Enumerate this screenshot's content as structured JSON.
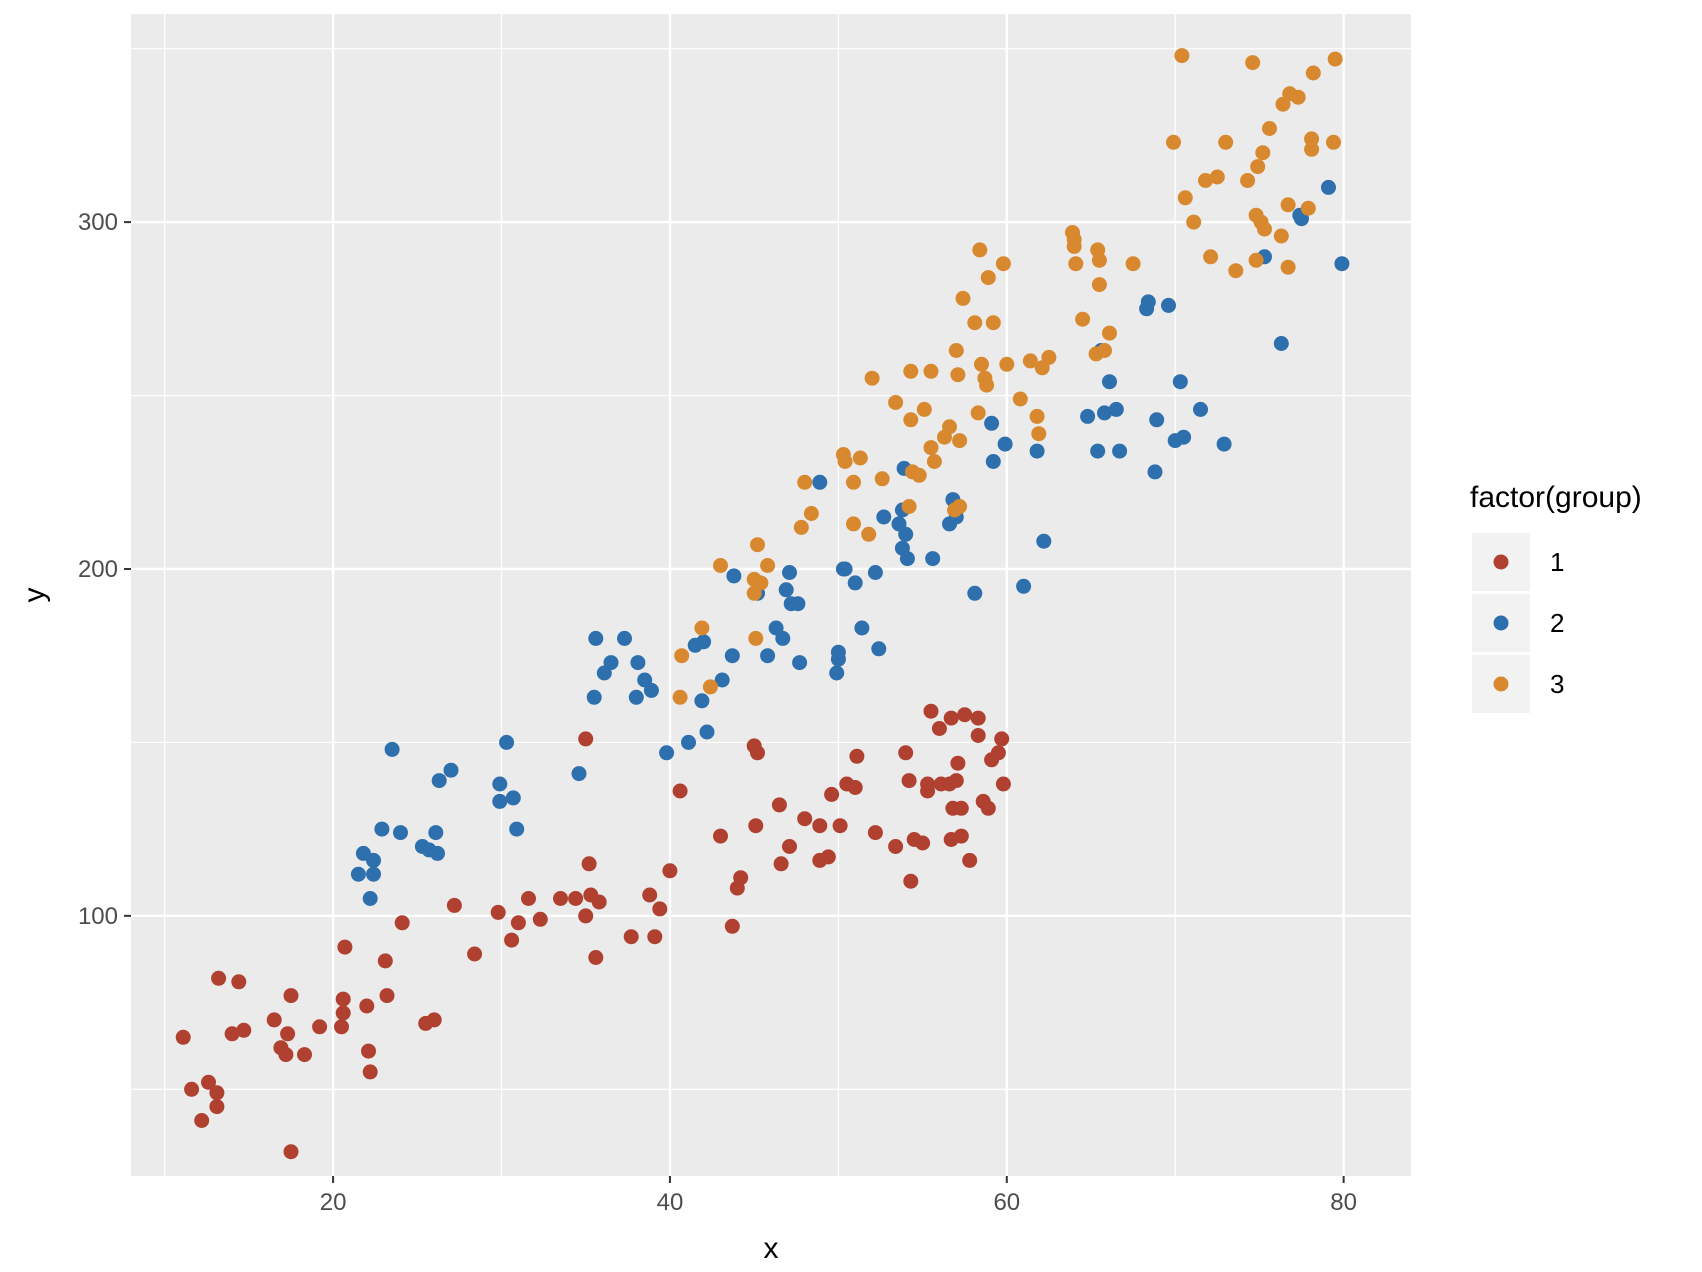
{
  "chart_data": {
    "type": "scatter",
    "xlabel": "x",
    "ylabel": "y",
    "xlim": [
      8,
      84
    ],
    "ylim": [
      25,
      360
    ],
    "x_ticks": [
      20,
      40,
      60,
      80
    ],
    "x_tick_labels": [
      "20",
      "40",
      "60",
      "80"
    ],
    "y_ticks": [
      100,
      200,
      300
    ],
    "y_tick_labels": [
      "100",
      "200",
      "300"
    ],
    "grid": true,
    "panel_background": "#ebebeb",
    "legend": {
      "title": "factor(group)",
      "placement": "right",
      "entries": [
        "1",
        "2",
        "3"
      ]
    },
    "series": [
      {
        "name": "1",
        "color": "#b0402f",
        "points": [
          [
            11.1,
            65
          ],
          [
            11.6,
            50
          ],
          [
            12.2,
            41
          ],
          [
            12.6,
            52
          ],
          [
            13.1,
            45
          ],
          [
            13.1,
            49
          ],
          [
            13.2,
            82
          ],
          [
            14,
            66
          ],
          [
            14.4,
            81
          ],
          [
            14.7,
            67
          ],
          [
            16.5,
            70
          ],
          [
            16.9,
            62
          ],
          [
            17.2,
            60
          ],
          [
            17.3,
            66
          ],
          [
            17.5,
            77
          ],
          [
            17.5,
            32
          ],
          [
            18.3,
            60
          ],
          [
            19.2,
            68
          ],
          [
            20.5,
            68
          ],
          [
            20.6,
            72
          ],
          [
            20.6,
            76
          ],
          [
            20.7,
            91
          ],
          [
            22,
            74
          ],
          [
            22.1,
            61
          ],
          [
            22.2,
            55
          ],
          [
            23.1,
            87
          ],
          [
            23.2,
            77
          ],
          [
            24.1,
            98
          ],
          [
            25.5,
            69
          ],
          [
            26,
            70
          ],
          [
            27.2,
            103
          ],
          [
            28.4,
            89
          ],
          [
            29.8,
            101
          ],
          [
            30.6,
            93
          ],
          [
            31,
            98
          ],
          [
            31.6,
            105
          ],
          [
            32.3,
            99
          ],
          [
            33.5,
            105
          ],
          [
            34.4,
            105
          ],
          [
            35,
            151
          ],
          [
            35,
            100
          ],
          [
            35.2,
            115
          ],
          [
            35.3,
            106
          ],
          [
            35.6,
            88
          ],
          [
            35.8,
            104
          ],
          [
            37.7,
            94
          ],
          [
            38.8,
            106
          ],
          [
            39.1,
            94
          ],
          [
            39.4,
            102
          ],
          [
            40,
            113
          ],
          [
            40.6,
            136
          ],
          [
            43,
            123
          ],
          [
            43.7,
            97
          ],
          [
            44,
            108
          ],
          [
            44.2,
            111
          ],
          [
            45,
            149
          ],
          [
            45.1,
            126
          ],
          [
            45.2,
            147
          ],
          [
            46.5,
            132
          ],
          [
            46.6,
            115
          ],
          [
            47.1,
            120
          ],
          [
            48,
            128
          ],
          [
            48.9,
            116
          ],
          [
            48.9,
            126
          ],
          [
            49.4,
            117
          ],
          [
            49.6,
            135
          ],
          [
            50.1,
            126
          ],
          [
            50.5,
            138
          ],
          [
            51,
            137
          ],
          [
            51.1,
            146
          ],
          [
            52.2,
            124
          ],
          [
            53.4,
            120
          ],
          [
            54,
            147
          ],
          [
            54.2,
            139
          ],
          [
            54.3,
            110
          ],
          [
            54.5,
            122
          ],
          [
            55,
            121
          ],
          [
            55.3,
            136
          ],
          [
            55.3,
            138
          ],
          [
            55.5,
            159
          ],
          [
            56,
            154
          ],
          [
            56.1,
            138
          ],
          [
            56.6,
            138
          ],
          [
            56.7,
            157
          ],
          [
            56.7,
            122
          ],
          [
            56.8,
            131
          ],
          [
            57,
            139
          ],
          [
            57.1,
            144
          ],
          [
            57.3,
            123
          ],
          [
            57.3,
            131
          ],
          [
            57.5,
            158
          ],
          [
            57.8,
            116
          ],
          [
            58.3,
            157
          ],
          [
            58.3,
            152
          ],
          [
            58.6,
            133
          ],
          [
            58.9,
            131
          ],
          [
            59.1,
            145
          ],
          [
            59.5,
            147
          ],
          [
            59.7,
            151
          ],
          [
            59.8,
            138
          ]
        ]
      },
      {
        "name": "2",
        "color": "#2e6fae",
        "points": [
          [
            21.5,
            112
          ],
          [
            21.8,
            118
          ],
          [
            22.2,
            105
          ],
          [
            22.4,
            112
          ],
          [
            22.4,
            116
          ],
          [
            22.9,
            125
          ],
          [
            23.5,
            148
          ],
          [
            24,
            124
          ],
          [
            25.3,
            120
          ],
          [
            25.7,
            119
          ],
          [
            26.1,
            124
          ],
          [
            26.2,
            118
          ],
          [
            26.3,
            139
          ],
          [
            27,
            142
          ],
          [
            29.9,
            138
          ],
          [
            29.9,
            133
          ],
          [
            30.3,
            150
          ],
          [
            30.7,
            134
          ],
          [
            30.9,
            125
          ],
          [
            34.6,
            141
          ],
          [
            35.5,
            163
          ],
          [
            35.6,
            180
          ],
          [
            36.1,
            170
          ],
          [
            36.5,
            173
          ],
          [
            37.3,
            180
          ],
          [
            38,
            163
          ],
          [
            38.1,
            173
          ],
          [
            38.5,
            168
          ],
          [
            38.9,
            165
          ],
          [
            39.8,
            147
          ],
          [
            41.1,
            150
          ],
          [
            41.5,
            178
          ],
          [
            41.9,
            162
          ],
          [
            42.2,
            153
          ],
          [
            42,
            179
          ],
          [
            43.1,
            168
          ],
          [
            43.7,
            175
          ],
          [
            43.8,
            198
          ],
          [
            45.2,
            193
          ],
          [
            45.8,
            175
          ],
          [
            46.3,
            183
          ],
          [
            46.7,
            180
          ],
          [
            46.9,
            194
          ],
          [
            47.1,
            199
          ],
          [
            47.2,
            190
          ],
          [
            47.6,
            190
          ],
          [
            47.7,
            173
          ],
          [
            48.9,
            225
          ],
          [
            49.9,
            170
          ],
          [
            50,
            174
          ],
          [
            50,
            176
          ],
          [
            50.3,
            200
          ],
          [
            50.4,
            200
          ],
          [
            51,
            196
          ],
          [
            51.4,
            183
          ],
          [
            52.2,
            199
          ],
          [
            52.4,
            177
          ],
          [
            52.7,
            215
          ],
          [
            53.6,
            213
          ],
          [
            53.8,
            217
          ],
          [
            53.8,
            206
          ],
          [
            53.9,
            229
          ],
          [
            54,
            210
          ],
          [
            54.1,
            203
          ],
          [
            55.6,
            203
          ],
          [
            56.6,
            213
          ],
          [
            56.8,
            220
          ],
          [
            57,
            215
          ],
          [
            58.1,
            193
          ],
          [
            59.1,
            242
          ],
          [
            59.2,
            231
          ],
          [
            59.9,
            236
          ],
          [
            61,
            195
          ],
          [
            61.8,
            234
          ],
          [
            62.2,
            208
          ],
          [
            64.8,
            244
          ],
          [
            65.4,
            234
          ],
          [
            65.6,
            263
          ],
          [
            65.8,
            245
          ],
          [
            66.1,
            254
          ],
          [
            66.5,
            246
          ],
          [
            66.7,
            234
          ],
          [
            68.3,
            275
          ],
          [
            68.4,
            277
          ],
          [
            68.8,
            228
          ],
          [
            68.9,
            243
          ],
          [
            69.6,
            276
          ],
          [
            70,
            237
          ],
          [
            70.3,
            254
          ],
          [
            70.5,
            238
          ],
          [
            71.5,
            246
          ],
          [
            72.9,
            236
          ],
          [
            75.3,
            290
          ],
          [
            76.3,
            265
          ],
          [
            77.4,
            302
          ],
          [
            77.5,
            301
          ],
          [
            79.1,
            310
          ],
          [
            79.9,
            288
          ]
        ]
      },
      {
        "name": "3",
        "color": "#d8892f",
        "points": [
          [
            40.6,
            163
          ],
          [
            40.7,
            175
          ],
          [
            41.9,
            183
          ],
          [
            42.4,
            166
          ],
          [
            43,
            201
          ],
          [
            45,
            193
          ],
          [
            45,
            197
          ],
          [
            45.1,
            180
          ],
          [
            45.2,
            207
          ],
          [
            45.4,
            196
          ],
          [
            45.8,
            201
          ],
          [
            47.8,
            212
          ],
          [
            48,
            225
          ],
          [
            48.4,
            216
          ],
          [
            50.3,
            233
          ],
          [
            50.4,
            231
          ],
          [
            50.9,
            225
          ],
          [
            50.9,
            213
          ],
          [
            51.3,
            232
          ],
          [
            51.8,
            210
          ],
          [
            52,
            255
          ],
          [
            52.6,
            226
          ],
          [
            53.4,
            248
          ],
          [
            54.2,
            218
          ],
          [
            54.3,
            243
          ],
          [
            54.3,
            257
          ],
          [
            54.4,
            228
          ],
          [
            54.8,
            227
          ],
          [
            55.1,
            246
          ],
          [
            55.5,
            257
          ],
          [
            55.5,
            235
          ],
          [
            55.7,
            231
          ],
          [
            56.3,
            238
          ],
          [
            56.6,
            241
          ],
          [
            56.9,
            217
          ],
          [
            57,
            263
          ],
          [
            57.1,
            256
          ],
          [
            57.2,
            237
          ],
          [
            57.2,
            218
          ],
          [
            57.4,
            278
          ],
          [
            58.1,
            271
          ],
          [
            58.3,
            245
          ],
          [
            58.4,
            292
          ],
          [
            58.5,
            259
          ],
          [
            58.7,
            255
          ],
          [
            58.8,
            253
          ],
          [
            58.9,
            284
          ],
          [
            59.2,
            271
          ],
          [
            59.8,
            288
          ],
          [
            60,
            259
          ],
          [
            60.8,
            249
          ],
          [
            61.4,
            260
          ],
          [
            61.8,
            244
          ],
          [
            61.9,
            239
          ],
          [
            62.1,
            258
          ],
          [
            62.5,
            261
          ],
          [
            63.9,
            297
          ],
          [
            64,
            293
          ],
          [
            64,
            295
          ],
          [
            64.1,
            288
          ],
          [
            64.5,
            272
          ],
          [
            65.3,
            262
          ],
          [
            65.4,
            292
          ],
          [
            65.5,
            289
          ],
          [
            65.5,
            282
          ],
          [
            65.8,
            263
          ],
          [
            66.1,
            268
          ],
          [
            67.5,
            288
          ],
          [
            69.9,
            323
          ],
          [
            70.4,
            348
          ],
          [
            70.6,
            307
          ],
          [
            71.1,
            300
          ],
          [
            71.8,
            312
          ],
          [
            72.1,
            290
          ],
          [
            72.5,
            313
          ],
          [
            73,
            323
          ],
          [
            73.6,
            286
          ],
          [
            74.3,
            312
          ],
          [
            74.6,
            346
          ],
          [
            74.8,
            302
          ],
          [
            74.8,
            289
          ],
          [
            74.9,
            316
          ],
          [
            75.1,
            300
          ],
          [
            75.2,
            320
          ],
          [
            75.3,
            298
          ],
          [
            75.6,
            327
          ],
          [
            76.3,
            296
          ],
          [
            76.4,
            334
          ],
          [
            76.7,
            287
          ],
          [
            76.7,
            305
          ],
          [
            76.8,
            337
          ],
          [
            77.3,
            336
          ],
          [
            77.9,
            304
          ],
          [
            78.1,
            324
          ],
          [
            78.1,
            321
          ],
          [
            78.2,
            343
          ],
          [
            79.4,
            323
          ],
          [
            79.5,
            347
          ]
        ]
      }
    ]
  }
}
